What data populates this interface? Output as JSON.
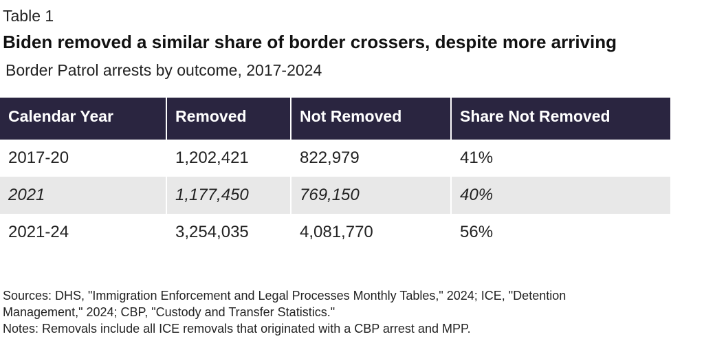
{
  "label": "Table 1",
  "title": "Biden removed a similar share of border crossers, despite more arriving",
  "subtitle": "Border Patrol arrests by outcome, 2017-2024",
  "chart_data": {
    "type": "table",
    "columns": [
      "Calendar Year",
      "Removed",
      "Not Removed",
      "Share Not Removed"
    ],
    "rows": [
      [
        "2017-20",
        "1,202,421",
        "822,979",
        "41%"
      ],
      [
        "2021",
        "1,177,450",
        "769,150",
        "40%"
      ],
      [
        "2021-24",
        "3,254,035",
        "4,081,770",
        "56%"
      ]
    ],
    "header_color": "#2a2540",
    "highlight_row_color": "#e8e8e8"
  },
  "notes": [
    "Sources: DHS, \"Immigration Enforcement and Legal Processes Monthly Tables,\" 2024; ICE, \"Detention",
    "Management,\" 2024; CBP, \"Custody and Transfer Statistics.\"",
    "Notes: Removals include all ICE removals that originated with a CBP arrest and MPP."
  ]
}
